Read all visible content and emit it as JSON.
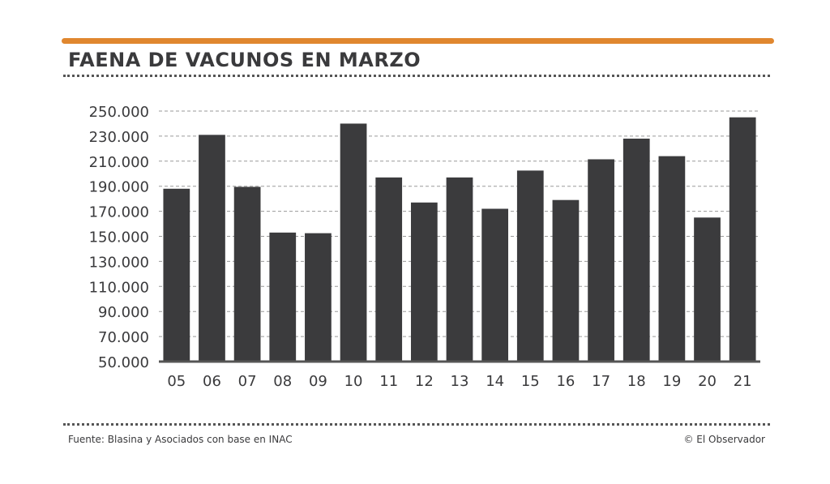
{
  "title": "FAENA DE VACUNOS EN MARZO",
  "footer": {
    "source": "Fuente: Blasina y Asociados con base en INAC",
    "credit": "© El Observador"
  },
  "colors": {
    "accent": "#e0872f",
    "bar": "#3b3b3d",
    "text": "#3a3a3c"
  },
  "chart_data": {
    "type": "bar",
    "categories": [
      "05",
      "06",
      "07",
      "08",
      "09",
      "10",
      "11",
      "12",
      "13",
      "14",
      "15",
      "16",
      "17",
      "18",
      "19",
      "20",
      "21"
    ],
    "values": [
      188000,
      231000,
      189500,
      153000,
      152500,
      240000,
      197000,
      177000,
      197000,
      172000,
      202500,
      179000,
      211500,
      228000,
      214000,
      165000,
      245000
    ],
    "yticks": [
      50000,
      70000,
      90000,
      110000,
      130000,
      150000,
      170000,
      190000,
      210000,
      230000,
      250000
    ],
    "ytick_labels": [
      "50.000",
      "70.000",
      "90.000",
      "110.000",
      "130.000",
      "150.000",
      "170.000",
      "190.000",
      "210.000",
      "230.000",
      "250.000"
    ],
    "ylim": [
      50000,
      250000
    ],
    "title": "FAENA DE VACUNOS EN MARZO",
    "xlabel": "",
    "ylabel": "",
    "grid": true
  }
}
